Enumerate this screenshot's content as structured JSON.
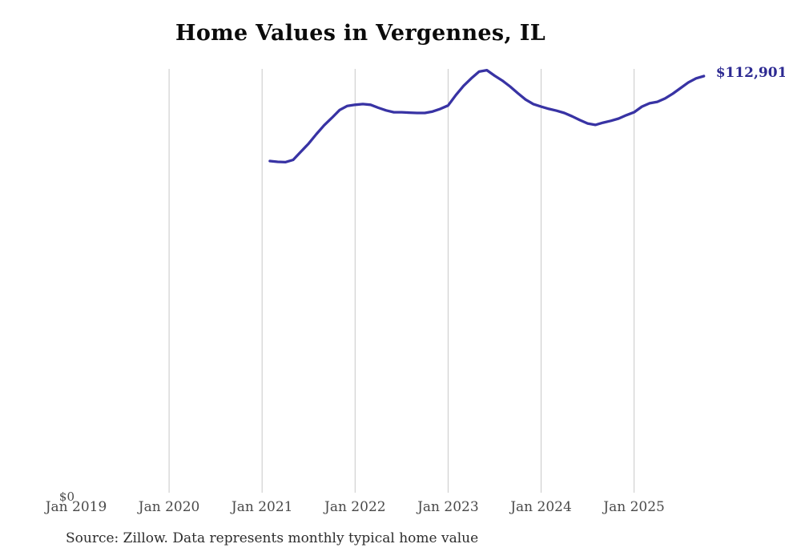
{
  "title": "Home Values in Vergennes, IL",
  "latest_value_label": "$112,901",
  "source_note": "Source: Zillow. Data represents monthly typical home value",
  "y_axis": {
    "zero_label": "$0"
  },
  "x_axis": {
    "ticks": [
      {
        "label": "Jan 2019",
        "month": "2019-01",
        "gridline": false
      },
      {
        "label": "Jan 2020",
        "month": "2020-01",
        "gridline": true
      },
      {
        "label": "Jan 2021",
        "month": "2021-01",
        "gridline": true
      },
      {
        "label": "Jan 2022",
        "month": "2022-01",
        "gridline": true
      },
      {
        "label": "Jan 2023",
        "month": "2023-01",
        "gridline": true
      },
      {
        "label": "Jan 2024",
        "month": "2024-01",
        "gridline": true
      },
      {
        "label": "Jan 2025",
        "month": "2025-01",
        "gridline": true
      }
    ]
  },
  "colors": {
    "line": "#3833a4",
    "latest_value_label": "#2d2a92",
    "gridline": "#c9c9c9",
    "axis_text": "#4a4a4a",
    "title_text": "#0b0b0b",
    "source_text": "#2d2d2d",
    "background": "#ffffff"
  },
  "chart_data": {
    "type": "line",
    "title": "Home Values in Vergennes, IL",
    "series_name": "Monthly typical home value (USD)",
    "xlabel": "",
    "ylabel": "",
    "ylim": [
      0,
      115500
    ],
    "x_range": [
      "2019-01",
      "2025-10"
    ],
    "grid": "vertical-yearly",
    "legend": false,
    "annotation_latest_value": 112901,
    "x": [
      "2021-02",
      "2021-03",
      "2021-04",
      "2021-05",
      "2021-06",
      "2021-07",
      "2021-08",
      "2021-09",
      "2021-10",
      "2021-11",
      "2021-12",
      "2022-01",
      "2022-02",
      "2022-03",
      "2022-04",
      "2022-05",
      "2022-06",
      "2022-07",
      "2022-08",
      "2022-09",
      "2022-10",
      "2022-11",
      "2022-12",
      "2023-01",
      "2023-02",
      "2023-03",
      "2023-04",
      "2023-05",
      "2023-06",
      "2023-07",
      "2023-08",
      "2023-09",
      "2023-10",
      "2023-11",
      "2023-12",
      "2024-01",
      "2024-02",
      "2024-03",
      "2024-04",
      "2024-05",
      "2024-06",
      "2024-07",
      "2024-08",
      "2024-09",
      "2024-10",
      "2024-11",
      "2024-12",
      "2025-01",
      "2025-02",
      "2025-03",
      "2025-04",
      "2025-05",
      "2025-06",
      "2025-07",
      "2025-08",
      "2025-09",
      "2025-10"
    ],
    "values": [
      90100,
      89900,
      89800,
      90400,
      92600,
      94800,
      97300,
      99700,
      101700,
      103800,
      104900,
      105200,
      105400,
      105200,
      104400,
      103700,
      103200,
      103200,
      103100,
      103000,
      103000,
      103400,
      104100,
      105000,
      107800,
      110300,
      112300,
      114100,
      114500,
      113000,
      111700,
      110100,
      108300,
      106600,
      105400,
      104700,
      104100,
      103600,
      103000,
      102100,
      101100,
      100200,
      99800,
      100400,
      100900,
      101500,
      102400,
      103200,
      104700,
      105600,
      106000,
      106900,
      108200,
      109700,
      111200,
      112300,
      112901
    ]
  }
}
